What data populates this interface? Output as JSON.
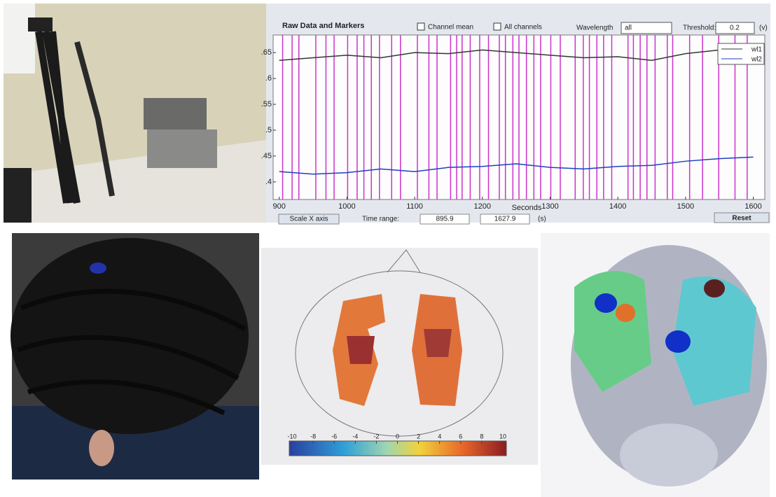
{
  "screen_chart": {
    "type": "line",
    "title": "Raw Data and Markers",
    "x_label": "Seconds",
    "controls": {
      "channel_mean": "Channel mean",
      "all_channels": "All channels",
      "wavelength_label": "Wavelength",
      "wavelength_value": "all",
      "threshold_label": "Threshold:",
      "threshold_value": "0.2",
      "threshold_unit": "(v)",
      "scale_button": "Scale X axis",
      "time_range_label": "Time range:",
      "time_start": "895.9",
      "time_end": "1627.9",
      "time_unit": "(s)",
      "reset_button": "Reset"
    },
    "xlim": [
      891,
      1617
    ],
    "xticks": [
      900,
      1000,
      1100,
      1200,
      1300,
      1400,
      1500,
      1600
    ],
    "ylim": [
      0.366,
      0.684
    ],
    "yticks": [
      {
        "value": 0.4,
        "label": ".4"
      },
      {
        "value": 0.45,
        "label": ".45"
      },
      {
        "value": 0.5,
        "label": ".5"
      },
      {
        "value": 0.55,
        "label": ".55"
      },
      {
        "value": 0.6,
        "label": ".6"
      },
      {
        "value": 0.65,
        "label": ".65"
      }
    ],
    "x": [
      900,
      950,
      1000,
      1050,
      1100,
      1150,
      1200,
      1250,
      1300,
      1350,
      1400,
      1450,
      1500,
      1550,
      1600
    ],
    "series": [
      {
        "name": "wl1",
        "color": "#2e3a2e",
        "values": [
          0.635,
          0.64,
          0.645,
          0.64,
          0.65,
          0.648,
          0.655,
          0.65,
          0.645,
          0.64,
          0.642,
          0.635,
          0.648,
          0.655,
          0.662
        ]
      },
      {
        "name": "wl2",
        "color": "#1f3fbf",
        "values": [
          0.42,
          0.415,
          0.418,
          0.425,
          0.42,
          0.428,
          0.43,
          0.435,
          0.428,
          0.425,
          0.43,
          0.432,
          0.44,
          0.445,
          0.448
        ]
      }
    ],
    "markers": [
      905,
      919,
      929,
      954,
      969,
      981,
      1001,
      1015,
      1025,
      1036,
      1048,
      1066,
      1079,
      1104,
      1121,
      1133,
      1153,
      1162,
      1170,
      1182,
      1196,
      1209,
      1225,
      1234,
      1245,
      1254,
      1265,
      1276,
      1286,
      1301,
      1315,
      1337,
      1349,
      1358,
      1369,
      1379,
      1391,
      1415,
      1423,
      1433,
      1443,
      1455,
      1473,
      1481,
      1506,
      1525,
      1549,
      1573,
      1591
    ],
    "marker_color": "#cc33cc"
  },
  "colorbar": {
    "lim": [
      -10,
      10
    ],
    "ticks": [
      -10,
      -8,
      -6,
      -4,
      -2,
      0,
      2,
      4,
      6,
      8,
      10
    ]
  }
}
